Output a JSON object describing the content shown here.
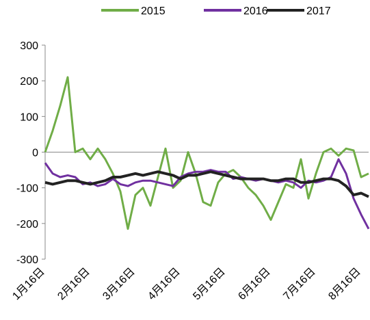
{
  "chart_data": {
    "type": "line",
    "categories": [
      "1月16日",
      null,
      null,
      null,
      null,
      null,
      "2月16日",
      null,
      null,
      null,
      null,
      null,
      "3月16日",
      null,
      null,
      null,
      null,
      null,
      "4月16日",
      null,
      null,
      null,
      null,
      null,
      "5月16日",
      null,
      null,
      null,
      null,
      null,
      "6月16日",
      null,
      null,
      null,
      null,
      null,
      "7月16日",
      null,
      null,
      null,
      null,
      null,
      "8月16日",
      null
    ],
    "series": [
      {
        "name": "2015",
        "color": "#70ad47",
        "values": [
          0,
          60,
          130,
          210,
          0,
          10,
          -20,
          10,
          -20,
          -60,
          -110,
          -215,
          -120,
          -100,
          -150,
          -70,
          10,
          -100,
          -80,
          0,
          -60,
          -140,
          -150,
          -85,
          -60,
          -50,
          -70,
          -100,
          -120,
          -150,
          -190,
          -140,
          -90,
          -100,
          -20,
          -130,
          -60,
          0,
          10,
          -10,
          10,
          5,
          -70,
          -60
        ]
      },
      {
        "name": "2016",
        "color": "#7030a0",
        "values": [
          -30,
          -60,
          -70,
          -65,
          -70,
          -90,
          -85,
          -95,
          -90,
          -75,
          -90,
          -95,
          -85,
          -80,
          -80,
          -85,
          -90,
          -95,
          -70,
          -60,
          -55,
          -55,
          -50,
          -55,
          -55,
          -75,
          -70,
          -75,
          -80,
          -75,
          -80,
          -85,
          -80,
          -85,
          -100,
          -80,
          -85,
          -80,
          -70,
          -20,
          -60,
          -130,
          -175,
          -215
        ]
      },
      {
        "name": "2017",
        "color": "#222222",
        "values": [
          -85,
          -90,
          -85,
          -80,
          -80,
          -85,
          -90,
          -85,
          -80,
          -70,
          -70,
          -65,
          -60,
          -65,
          -60,
          -55,
          -60,
          -65,
          -75,
          -65,
          -65,
          -60,
          -55,
          -60,
          -65,
          -70,
          -75,
          -75,
          -75,
          -75,
          -80,
          -80,
          -75,
          -75,
          -85,
          -85,
          -80,
          -75,
          -75,
          -80,
          -95,
          -120,
          -115,
          -125
        ]
      }
    ],
    "ylim": [
      -300,
      300
    ],
    "yticks": [
      -300,
      -200,
      -100,
      0,
      100,
      200,
      300
    ],
    "legend": "top"
  }
}
